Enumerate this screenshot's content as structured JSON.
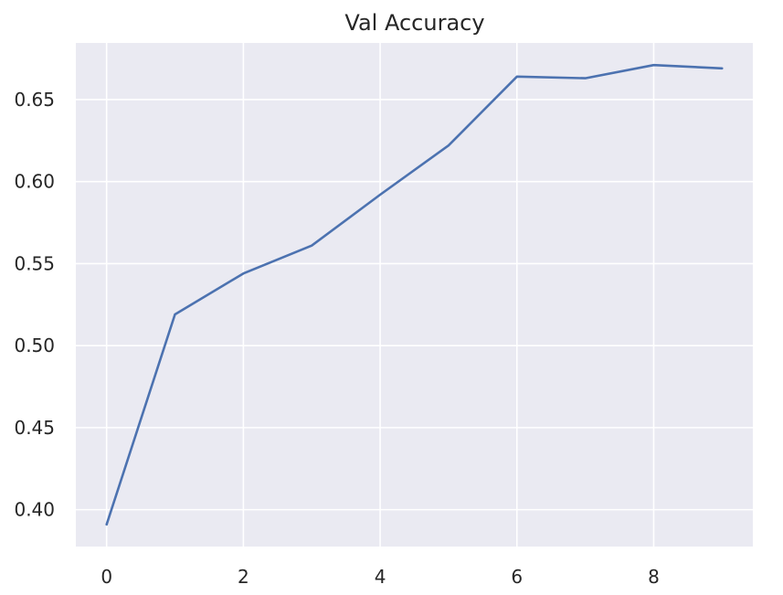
{
  "chart_data": {
    "type": "line",
    "title": "Val Accuracy",
    "xlabel": "",
    "ylabel": "",
    "x": [
      0,
      1,
      2,
      3,
      4,
      5,
      6,
      7,
      8,
      9
    ],
    "series": [
      {
        "color": "#4c72b0",
        "values": [
          0.391,
          0.519,
          0.544,
          0.561,
          0.592,
          0.622,
          0.664,
          0.663,
          0.671,
          0.669
        ]
      }
    ],
    "xlim": [
      -0.45,
      9.45
    ],
    "ylim": [
      0.3775,
      0.6845
    ],
    "xticks": [
      0,
      2,
      4,
      6,
      8
    ],
    "xtick_labels": [
      "0",
      "2",
      "4",
      "6",
      "8"
    ],
    "yticks": [
      0.4,
      0.45,
      0.5,
      0.55,
      0.6,
      0.65
    ],
    "ytick_labels": [
      "0.40",
      "0.45",
      "0.50",
      "0.55",
      "0.60",
      "0.65"
    ],
    "grid": true,
    "legend": "none",
    "background_color": "#eaeaf2",
    "grid_color": "#ffffff"
  }
}
